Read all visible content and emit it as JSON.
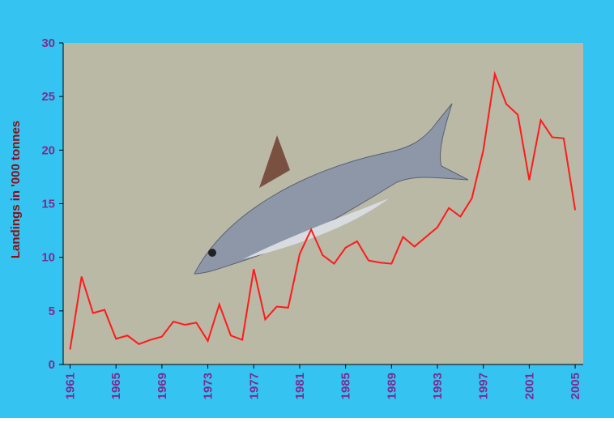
{
  "chart_data": {
    "type": "line",
    "y_label": "Landings in '000 tonnes",
    "x": [
      1961,
      1962,
      1963,
      1964,
      1965,
      1966,
      1967,
      1968,
      1969,
      1970,
      1971,
      1972,
      1973,
      1974,
      1975,
      1976,
      1977,
      1978,
      1979,
      1980,
      1981,
      1982,
      1983,
      1984,
      1985,
      1986,
      1987,
      1988,
      1989,
      1990,
      1991,
      1992,
      1993,
      1994,
      1995,
      1996,
      1997,
      1998,
      1999,
      2000,
      2001,
      2002,
      2003,
      2004,
      2005
    ],
    "series": [
      {
        "color": "#ff1a1a",
        "values": [
          1.4,
          8.2,
          4.8,
          5.1,
          2.4,
          2.7,
          1.9,
          2.3,
          2.6,
          4.0,
          3.7,
          3.9,
          2.2,
          5.6,
          2.7,
          2.3,
          8.9,
          4.2,
          5.4,
          5.3,
          10.3,
          12.6,
          10.2,
          9.4,
          10.9,
          11.5,
          9.7,
          9.5,
          9.4,
          11.9,
          11.0,
          11.9,
          12.8,
          14.6,
          13.8,
          15.5,
          20.0,
          27.1,
          24.3,
          23.3,
          17.2,
          22.8,
          21.2,
          21.1,
          14.4
        ]
      }
    ],
    "xlim": [
      1960.4,
      2005.7
    ],
    "xticks": [
      1961,
      1965,
      1969,
      1973,
      1977,
      1981,
      1985,
      1989,
      1993,
      1997,
      2001,
      2005
    ],
    "ylim": [
      0,
      30
    ],
    "yticks": [
      0,
      5,
      10,
      15,
      20,
      25,
      30
    ]
  }
}
